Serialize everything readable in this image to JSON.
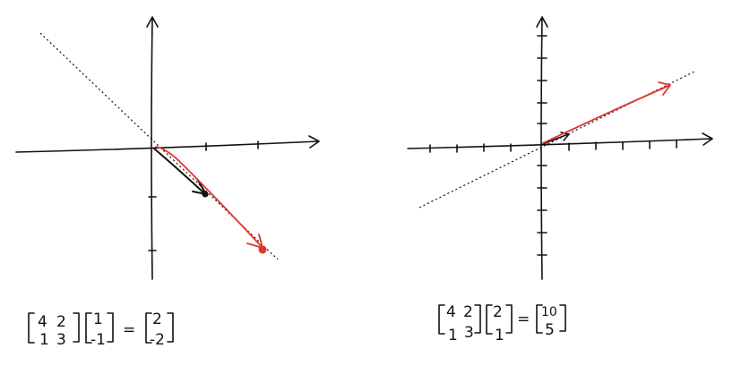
{
  "colors": {
    "ink": "#111111",
    "vector": "#e0352b"
  },
  "left": {
    "matrix": [
      [
        "4",
        "2"
      ],
      [
        "1",
        "3"
      ]
    ],
    "vector": [
      "1",
      "-1"
    ],
    "equals": "=",
    "result": [
      "2",
      "-2"
    ]
  },
  "right": {
    "matrix": [
      [
        "4",
        "2"
      ],
      [
        "1",
        "3"
      ]
    ],
    "vector": [
      "2",
      "1"
    ],
    "equals": "=",
    "result": [
      "10",
      "5"
    ]
  }
}
